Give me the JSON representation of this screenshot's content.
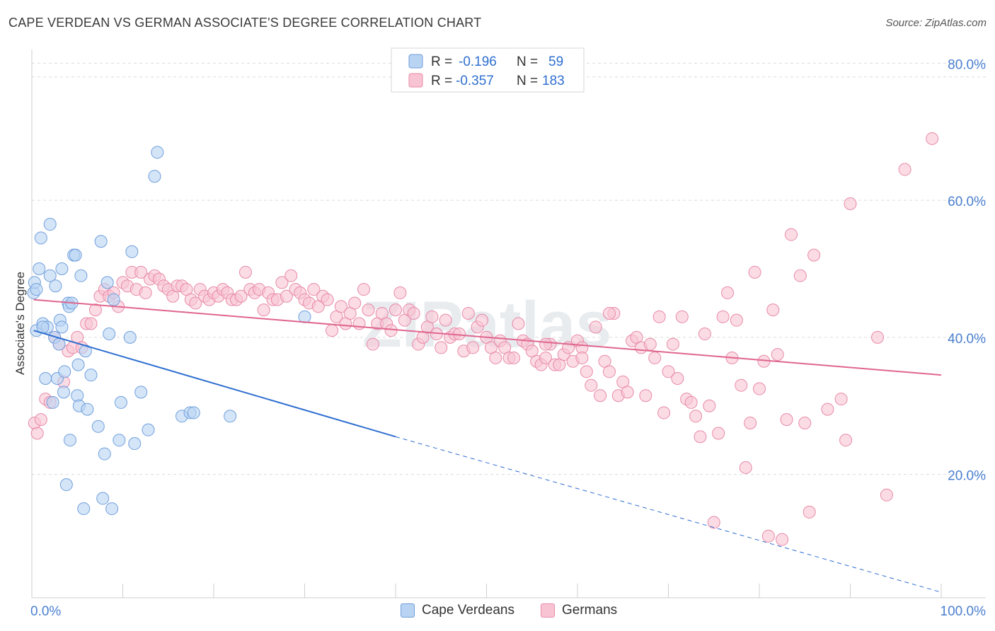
{
  "header": {
    "title": "CAPE VERDEAN VS GERMAN ASSOCIATE'S DEGREE CORRELATION CHART",
    "source": "Source: ZipAtlas.com"
  },
  "legend_top": {
    "rows": [
      {
        "r_label": "R =",
        "r_value": "-0.196",
        "n_label": "N =",
        "n_value": "59"
      },
      {
        "r_label": "R =",
        "r_value": "-0.357",
        "n_label": "N =",
        "n_value": "183"
      }
    ]
  },
  "legend_bottom": {
    "items": [
      {
        "label": "Cape Verdeans"
      },
      {
        "label": "Germans"
      }
    ]
  },
  "watermark": "ZIPatlas",
  "colors": {
    "blue_fill": "#b9d3f3",
    "blue_stroke": "#6f9fdc",
    "blue_line": "#2f6fd0",
    "pink_fill": "#f8c4d3",
    "pink_stroke": "#e889a8",
    "pink_line": "#e0668f",
    "tick_label": "#4a7fd0",
    "grid": "#dcdcdc"
  },
  "chart_data": {
    "type": "scatter",
    "title": "CAPE VERDEAN VS GERMAN ASSOCIATE'S DEGREE CORRELATION CHART",
    "xlabel": "",
    "ylabel": "Associate's Degree",
    "xlim": [
      0,
      100
    ],
    "ylim": [
      2,
      82
    ],
    "x_tick_labels": [
      "0.0%",
      "100.0%"
    ],
    "y_ticks": [
      20,
      40,
      60,
      80
    ],
    "y_tick_labels": [
      "20.0%",
      "40.0%",
      "60.0%",
      "80.0%"
    ],
    "grid": true,
    "legend_placement": "top-center",
    "series": [
      {
        "name": "Cape Verdeans",
        "r": -0.196,
        "n": 59,
        "trend": {
          "x0": 0.2,
          "y0": 41.0,
          "x1": 40.0,
          "y1": 25.5,
          "dashed_to_x": 100,
          "dashed_to_y": 2.8
        },
        "points": [
          [
            0.2,
            46.5
          ],
          [
            0.3,
            48.0
          ],
          [
            0.5,
            41.0
          ],
          [
            0.8,
            50.0
          ],
          [
            1.0,
            54.5
          ],
          [
            1.2,
            42.0
          ],
          [
            1.5,
            34.0
          ],
          [
            1.7,
            41.5
          ],
          [
            2.0,
            56.5
          ],
          [
            2.0,
            49.0
          ],
          [
            2.3,
            30.5
          ],
          [
            2.5,
            40.0
          ],
          [
            2.6,
            47.5
          ],
          [
            2.8,
            34.0
          ],
          [
            3.0,
            39.0
          ],
          [
            3.1,
            42.5
          ],
          [
            3.3,
            50.0
          ],
          [
            3.5,
            32.0
          ],
          [
            3.6,
            35.0
          ],
          [
            3.8,
            18.5
          ],
          [
            4.0,
            45.0
          ],
          [
            4.1,
            44.5
          ],
          [
            4.2,
            25.0
          ],
          [
            4.6,
            52.0
          ],
          [
            4.8,
            52.0
          ],
          [
            5.0,
            31.5
          ],
          [
            5.1,
            36.0
          ],
          [
            5.2,
            30.0
          ],
          [
            5.4,
            49.0
          ],
          [
            5.7,
            15.0
          ],
          [
            5.9,
            38.0
          ],
          [
            6.1,
            29.5
          ],
          [
            6.5,
            34.5
          ],
          [
            7.3,
            27.0
          ],
          [
            7.6,
            54.0
          ],
          [
            7.8,
            16.5
          ],
          [
            8.0,
            23.0
          ],
          [
            8.3,
            48.0
          ],
          [
            8.5,
            40.5
          ],
          [
            8.8,
            15.0
          ],
          [
            9.0,
            45.5
          ],
          [
            9.6,
            25.0
          ],
          [
            9.8,
            30.5
          ],
          [
            10.8,
            40.0
          ],
          [
            11.0,
            52.5
          ],
          [
            11.3,
            24.5
          ],
          [
            12.0,
            32.0
          ],
          [
            12.8,
            26.5
          ],
          [
            13.5,
            63.5
          ],
          [
            13.8,
            67.0
          ],
          [
            16.5,
            28.5
          ],
          [
            17.4,
            29.0
          ],
          [
            17.8,
            29.0
          ],
          [
            21.8,
            28.5
          ],
          [
            30.0,
            43.0
          ],
          [
            1.2,
            41.5
          ],
          [
            3.3,
            41.5
          ],
          [
            4.4,
            45.0
          ],
          [
            0.5,
            47.0
          ]
        ]
      },
      {
        "name": "Germans",
        "r": -0.357,
        "n": 183,
        "trend": {
          "x0": 0.2,
          "y0": 45.5,
          "x1": 100,
          "y1": 34.5
        },
        "points": [
          [
            0.3,
            27.5
          ],
          [
            0.6,
            26.0
          ],
          [
            1.0,
            28.0
          ],
          [
            1.5,
            31.0
          ],
          [
            2.0,
            30.5
          ],
          [
            2.5,
            40.0
          ],
          [
            3.0,
            39.0
          ],
          [
            3.5,
            33.5
          ],
          [
            4.0,
            38.0
          ],
          [
            4.5,
            38.5
          ],
          [
            5.0,
            40.0
          ],
          [
            5.5,
            38.5
          ],
          [
            6.0,
            42.0
          ],
          [
            6.5,
            42.0
          ],
          [
            7.0,
            44.0
          ],
          [
            7.5,
            46.0
          ],
          [
            8.0,
            47.0
          ],
          [
            8.5,
            46.0
          ],
          [
            9.0,
            46.5
          ],
          [
            9.5,
            44.5
          ],
          [
            10.0,
            48.0
          ],
          [
            10.5,
            47.5
          ],
          [
            11.0,
            49.5
          ],
          [
            11.5,
            47.0
          ],
          [
            12.0,
            49.5
          ],
          [
            12.5,
            46.5
          ],
          [
            13.0,
            48.5
          ],
          [
            13.5,
            49.0
          ],
          [
            14.0,
            48.5
          ],
          [
            14.5,
            47.5
          ],
          [
            15.0,
            47.0
          ],
          [
            15.5,
            46.0
          ],
          [
            16.0,
            47.5
          ],
          [
            16.5,
            47.5
          ],
          [
            17.0,
            47.0
          ],
          [
            17.5,
            45.5
          ],
          [
            18.0,
            45.0
          ],
          [
            18.5,
            47.0
          ],
          [
            19.0,
            46.0
          ],
          [
            19.5,
            45.5
          ],
          [
            20.0,
            46.5
          ],
          [
            20.5,
            46.0
          ],
          [
            21.0,
            47.0
          ],
          [
            21.5,
            46.5
          ],
          [
            22.0,
            45.5
          ],
          [
            22.5,
            45.5
          ],
          [
            23.0,
            46.0
          ],
          [
            23.5,
            49.5
          ],
          [
            24.0,
            47.0
          ],
          [
            24.5,
            46.5
          ],
          [
            25.0,
            47.0
          ],
          [
            25.5,
            44.0
          ],
          [
            26.0,
            46.5
          ],
          [
            26.5,
            45.5
          ],
          [
            27.0,
            45.5
          ],
          [
            27.5,
            48.0
          ],
          [
            28.0,
            46.0
          ],
          [
            28.5,
            49.0
          ],
          [
            29.0,
            47.0
          ],
          [
            29.5,
            46.5
          ],
          [
            30.0,
            45.5
          ],
          [
            30.5,
            45.0
          ],
          [
            31.0,
            47.0
          ],
          [
            31.5,
            44.5
          ],
          [
            32.0,
            46.0
          ],
          [
            32.5,
            45.5
          ],
          [
            33.0,
            41.0
          ],
          [
            33.5,
            43.0
          ],
          [
            34.0,
            44.5
          ],
          [
            34.5,
            42.0
          ],
          [
            35.0,
            43.5
          ],
          [
            35.5,
            45.0
          ],
          [
            36.0,
            42.0
          ],
          [
            36.5,
            47.0
          ],
          [
            37.0,
            44.0
          ],
          [
            37.5,
            39.0
          ],
          [
            38.0,
            42.0
          ],
          [
            38.5,
            43.5
          ],
          [
            39.0,
            42.0
          ],
          [
            39.5,
            41.0
          ],
          [
            40.0,
            44.0
          ],
          [
            40.5,
            46.5
          ],
          [
            41.0,
            42.5
          ],
          [
            41.5,
            44.0
          ],
          [
            42.0,
            43.5
          ],
          [
            42.5,
            39.0
          ],
          [
            43.0,
            40.0
          ],
          [
            43.5,
            41.5
          ],
          [
            44.0,
            43.0
          ],
          [
            44.5,
            40.5
          ],
          [
            45.0,
            38.5
          ],
          [
            45.5,
            42.5
          ],
          [
            46.0,
            40.0
          ],
          [
            46.5,
            40.5
          ],
          [
            47.0,
            40.5
          ],
          [
            47.5,
            38.0
          ],
          [
            48.0,
            43.5
          ],
          [
            48.5,
            38.5
          ],
          [
            49.0,
            41.5
          ],
          [
            49.5,
            42.5
          ],
          [
            50.0,
            40.0
          ],
          [
            50.5,
            38.5
          ],
          [
            51.0,
            37.0
          ],
          [
            51.5,
            39.5
          ],
          [
            52.0,
            38.5
          ],
          [
            52.5,
            37.0
          ],
          [
            53.0,
            37.0
          ],
          [
            53.5,
            42.0
          ],
          [
            54.0,
            39.5
          ],
          [
            54.5,
            39.0
          ],
          [
            55.0,
            38.0
          ],
          [
            55.5,
            36.5
          ],
          [
            56.0,
            36.0
          ],
          [
            56.5,
            37.0
          ],
          [
            57.0,
            39.0
          ],
          [
            57.5,
            36.0
          ],
          [
            58.0,
            36.0
          ],
          [
            58.5,
            37.5
          ],
          [
            59.0,
            38.5
          ],
          [
            59.5,
            36.5
          ],
          [
            60.0,
            39.5
          ],
          [
            60.5,
            38.5
          ],
          [
            61.0,
            35.0
          ],
          [
            61.5,
            33.0
          ],
          [
            62.0,
            41.5
          ],
          [
            62.5,
            31.5
          ],
          [
            63.0,
            36.5
          ],
          [
            63.5,
            35.0
          ],
          [
            64.0,
            43.5
          ],
          [
            64.5,
            31.5
          ],
          [
            65.0,
            33.5
          ],
          [
            65.5,
            32.0
          ],
          [
            66.0,
            39.5
          ],
          [
            66.5,
            40.0
          ],
          [
            67.0,
            38.5
          ],
          [
            67.5,
            31.5
          ],
          [
            68.0,
            39.0
          ],
          [
            68.5,
            37.0
          ],
          [
            69.0,
            43.0
          ],
          [
            69.5,
            29.0
          ],
          [
            70.0,
            35.0
          ],
          [
            70.5,
            39.0
          ],
          [
            71.0,
            34.0
          ],
          [
            71.5,
            43.0
          ],
          [
            72.0,
            31.0
          ],
          [
            72.5,
            30.5
          ],
          [
            73.0,
            28.5
          ],
          [
            73.5,
            25.5
          ],
          [
            74.0,
            40.5
          ],
          [
            74.5,
            30.0
          ],
          [
            75.0,
            13.0
          ],
          [
            75.5,
            26.0
          ],
          [
            76.0,
            43.0
          ],
          [
            76.5,
            46.5
          ],
          [
            77.0,
            37.0
          ],
          [
            77.5,
            42.5
          ],
          [
            78.0,
            33.0
          ],
          [
            78.5,
            21.0
          ],
          [
            79.0,
            27.5
          ],
          [
            79.5,
            49.5
          ],
          [
            80.0,
            32.5
          ],
          [
            80.5,
            36.5
          ],
          [
            81.0,
            11.0
          ],
          [
            81.5,
            44.0
          ],
          [
            82.0,
            37.5
          ],
          [
            82.5,
            10.5
          ],
          [
            83.0,
            28.0
          ],
          [
            83.5,
            55.0
          ],
          [
            84.5,
            49.0
          ],
          [
            85.0,
            27.5
          ],
          [
            85.5,
            14.5
          ],
          [
            86.0,
            52.0
          ],
          [
            87.5,
            29.5
          ],
          [
            89.0,
            31.0
          ],
          [
            89.5,
            25.0
          ],
          [
            90.0,
            59.5
          ],
          [
            93.0,
            40.0
          ],
          [
            94.0,
            17.0
          ],
          [
            96.0,
            64.5
          ],
          [
            99.0,
            69.0
          ],
          [
            56.5,
            39.0
          ],
          [
            60.5,
            37.0
          ],
          [
            63.5,
            43.5
          ]
        ]
      }
    ]
  }
}
